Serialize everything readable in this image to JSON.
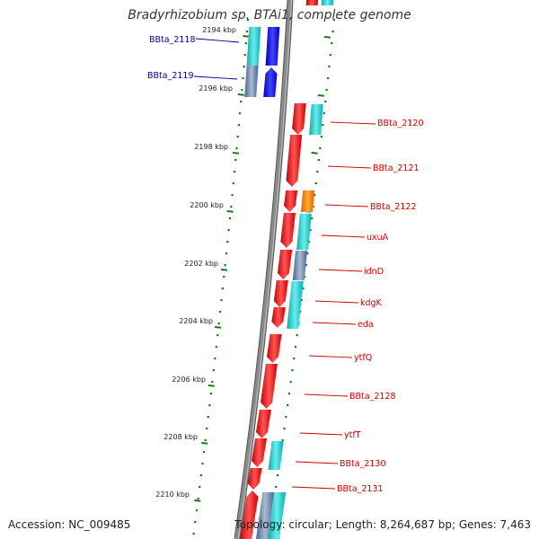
{
  "title": "Bradyrhizobium sp. BTAi1, complete genome",
  "accession": "Accession: NC_009485",
  "topology": "Topology: circular; Length: 8,264,687 bp; Genes: 7,463",
  "colors": {
    "backbone": "#8a8a8a",
    "tick_dots": "#1a7a1a",
    "left_labels": "#000099",
    "right_labels": "#cc0000",
    "red_gene": "#ee1111",
    "cyan_gene": "#22cccc",
    "blue_gene": "#0000ee",
    "steel_gene": "#5577aa",
    "orange_gene": "#ff8800"
  },
  "kbp_ticks": [
    "2194 kbp",
    "2196 kbp",
    "2198 kbp",
    "2200 kbp",
    "2202 kbp",
    "2204 kbp",
    "2206 kbp",
    "2208 kbp",
    "2210 kbp"
  ],
  "gene_labels_left": [
    "BBta_2118",
    "BBta_2119"
  ],
  "gene_labels_right": [
    "BBta_2120",
    "BBta_2121",
    "BBta_2122",
    "uxuA",
    "idnD",
    "kdgK",
    "eda",
    "ytfQ",
    "BBta_2128",
    "ytfT",
    "BBta_2130",
    "BBta_2131"
  ]
}
